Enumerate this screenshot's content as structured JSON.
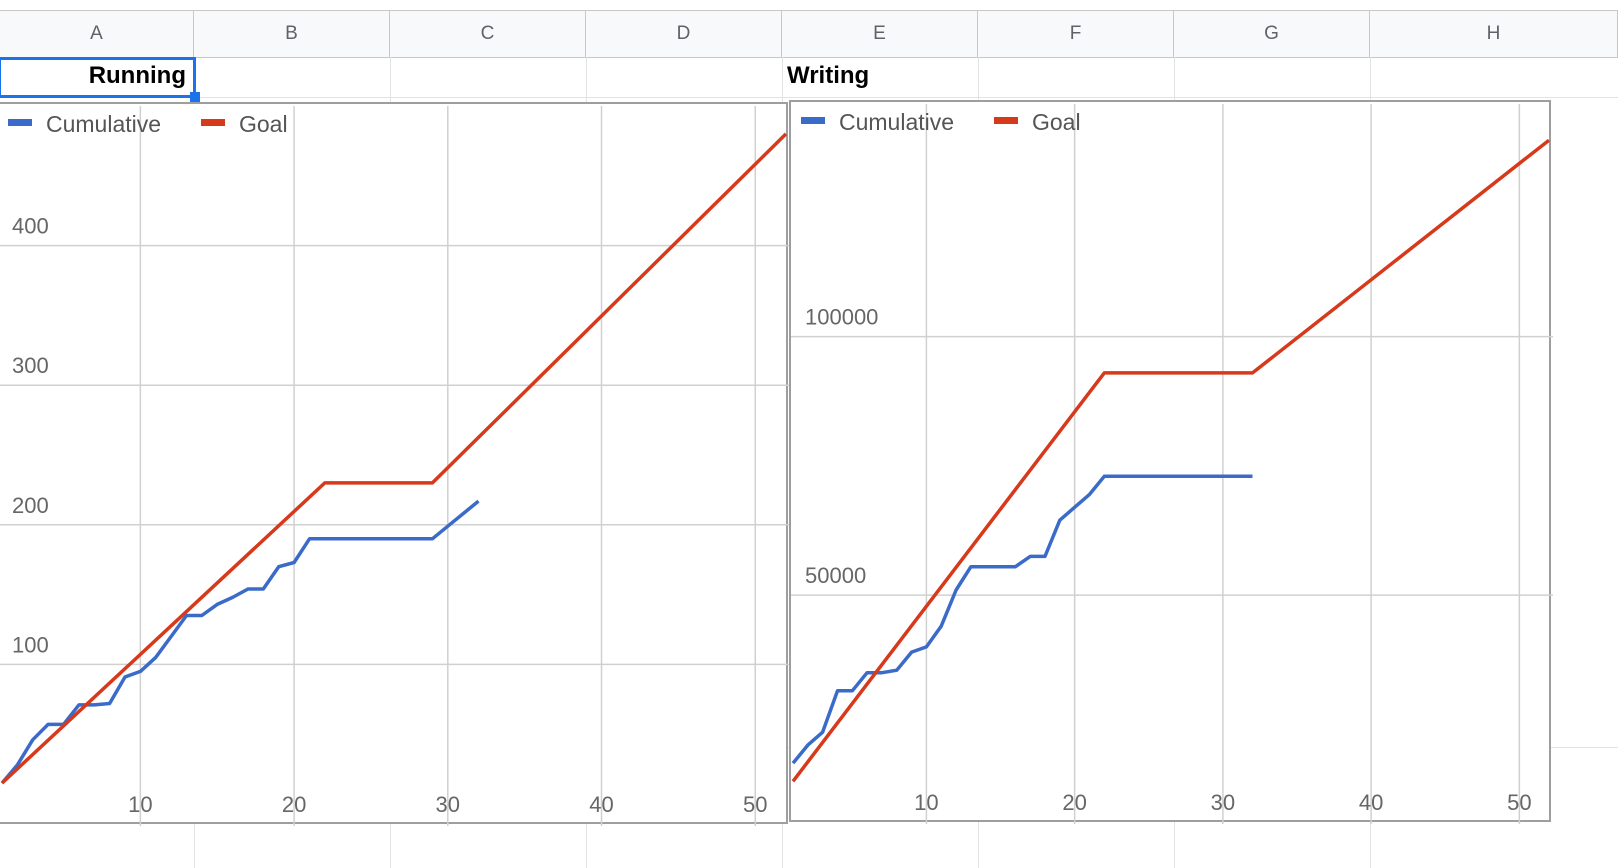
{
  "sheet": {
    "columns": [
      "A",
      "B",
      "C",
      "D",
      "E",
      "F",
      "G",
      "H"
    ],
    "cells": {
      "a2": "Running",
      "e2": "Writing"
    }
  },
  "colors": {
    "cumulative": "#3a6bc9",
    "goal": "#d7391b",
    "selection": "#1a73e8"
  },
  "chart_data": [
    {
      "type": "line",
      "legend_position": "top-left",
      "grid": true,
      "xlim": [
        1,
        52
      ],
      "ylim": [
        0,
        500
      ],
      "x_ticks": [
        10,
        20,
        30,
        40,
        50
      ],
      "y_ticks": [
        100,
        200,
        300,
        400
      ],
      "series": [
        {
          "name": "Cumulative",
          "x": [
            1,
            2,
            3,
            4,
            5,
            6,
            7,
            8,
            9,
            10,
            11,
            12,
            13,
            14,
            15,
            16,
            17,
            18,
            19,
            20,
            21,
            22,
            23,
            24,
            25,
            26,
            27,
            28,
            29,
            30,
            31,
            32
          ],
          "y": [
            15,
            28,
            46,
            57,
            57,
            71,
            71,
            72,
            91,
            95,
            105,
            120,
            135,
            135,
            143,
            148,
            154,
            154,
            170,
            173,
            190,
            190,
            190,
            190,
            190,
            190,
            190,
            190,
            190,
            199,
            208,
            217
          ]
        },
        {
          "name": "Goal",
          "x": [
            1,
            22,
            29,
            52
          ],
          "y": [
            15,
            230,
            230,
            480
          ]
        }
      ]
    },
    {
      "type": "line",
      "legend_position": "top-left",
      "grid": true,
      "xlim": [
        1,
        52
      ],
      "ylim": [
        10000,
        145000
      ],
      "x_ticks": [
        10,
        20,
        30,
        40,
        50
      ],
      "y_ticks": [
        50000,
        100000
      ],
      "series": [
        {
          "name": "Cumulative",
          "x": [
            1,
            2,
            3,
            4,
            5,
            6,
            7,
            8,
            9,
            10,
            11,
            12,
            13,
            14,
            15,
            16,
            17,
            18,
            19,
            20,
            21,
            22,
            23,
            24,
            25,
            26,
            27,
            28,
            29,
            30,
            31,
            32
          ],
          "y": [
            17500,
            21000,
            23500,
            31500,
            31500,
            35000,
            35000,
            35500,
            39000,
            40000,
            44000,
            51000,
            55500,
            55500,
            55500,
            55500,
            57500,
            57500,
            64500,
            67000,
            69500,
            73000,
            73000,
            73000,
            73000,
            73000,
            73000,
            73000,
            73000,
            73000,
            73000,
            73000
          ]
        },
        {
          "name": "Goal",
          "x": [
            1,
            22,
            32,
            52
          ],
          "y": [
            14000,
            93000,
            93000,
            138000
          ]
        }
      ]
    }
  ]
}
